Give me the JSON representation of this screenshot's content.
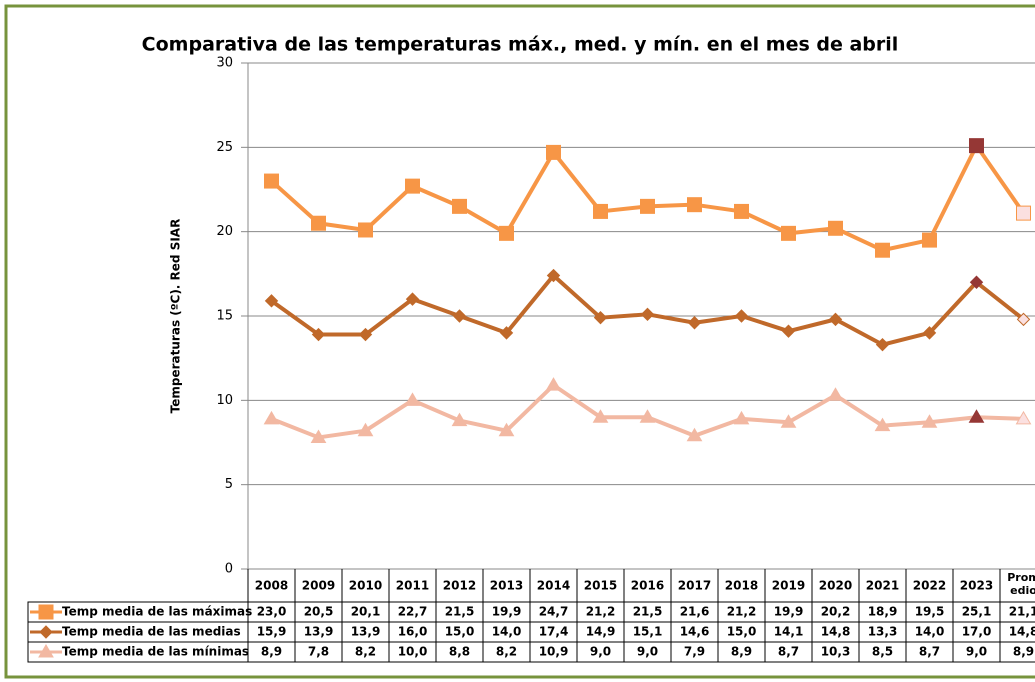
{
  "chart_data": {
    "type": "line",
    "title": "Comparativa de las temperaturas máx., med. y mín. en el mes de abril",
    "ylabel": "Temperaturas (ºC). Red  SIAR",
    "categories": [
      "2008",
      "2009",
      "2010",
      "2011",
      "2012",
      "2013",
      "2014",
      "2015",
      "2016",
      "2017",
      "2018",
      "2019",
      "2020",
      "2021",
      "2022",
      "2023",
      "Promedio"
    ],
    "ylim": [
      0,
      30
    ],
    "yticks": [
      0,
      5,
      10,
      15,
      20,
      25,
      30
    ],
    "grid": true,
    "highlight": {
      "category": "2023",
      "color": "#953735"
    },
    "series": [
      {
        "name": "Temp media de las máximas",
        "color": "#f79646",
        "marker": "square",
        "last_color": "#fbe0e0",
        "values": [
          23.0,
          20.5,
          20.1,
          22.7,
          21.5,
          19.9,
          24.7,
          21.2,
          21.5,
          21.6,
          21.2,
          19.9,
          20.2,
          18.9,
          19.5,
          25.1,
          21.1
        ],
        "value_labels": [
          "23,0",
          "20,5",
          "20,1",
          "22,7",
          "21,5",
          "19,9",
          "24,7",
          "21,2",
          "21,5",
          "21,6",
          "21,2",
          "19,9",
          "20,2",
          "18,9",
          "19,5",
          "25,1",
          "21,1"
        ]
      },
      {
        "name": "Temp media de las medias",
        "color": "#c0692a",
        "marker": "diamond",
        "last_color": "#fbe0e0",
        "values": [
          15.9,
          13.9,
          13.9,
          16.0,
          15.0,
          14.0,
          17.4,
          14.9,
          15.1,
          14.6,
          15.0,
          14.1,
          14.8,
          13.3,
          14.0,
          17.0,
          14.8
        ],
        "value_labels": [
          "15,9",
          "13,9",
          "13,9",
          "16,0",
          "15,0",
          "14,0",
          "17,4",
          "14,9",
          "15,1",
          "14,6",
          "15,0",
          "14,1",
          "14,8",
          "13,3",
          "14,0",
          "17,0",
          "14,8"
        ]
      },
      {
        "name": "Temp media de las mínimas",
        "color": "#f2b8a2",
        "marker": "triangle",
        "last_color": "#fbe0e0",
        "values": [
          8.9,
          7.8,
          8.2,
          10.0,
          8.8,
          8.2,
          10.9,
          9.0,
          9.0,
          7.9,
          8.9,
          8.7,
          10.3,
          8.5,
          8.7,
          9.0,
          8.9
        ],
        "value_labels": [
          "8,9",
          "7,8",
          "8,2",
          "10,0",
          "8,8",
          "8,2",
          "10,9",
          "9,0",
          "9,0",
          "7,9",
          "8,9",
          "8,7",
          "10,3",
          "8,5",
          "8,7",
          "9,0",
          "8,9"
        ]
      }
    ]
  }
}
